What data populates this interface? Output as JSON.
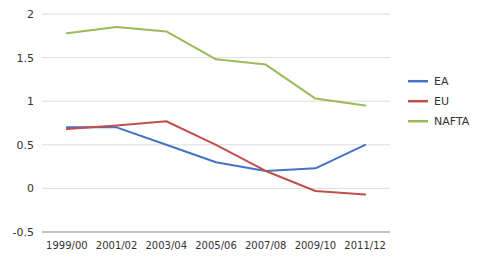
{
  "chart_data": {
    "type": "line",
    "categories": [
      "1999/00",
      "2001/02",
      "2003/04",
      "2005/06",
      "2007/08",
      "2009/10",
      "2011/12"
    ],
    "series": [
      {
        "name": "EA",
        "color": "#4472c4",
        "values": [
          0.7,
          0.7,
          0.5,
          0.3,
          0.2,
          0.23,
          0.5
        ]
      },
      {
        "name": "EU",
        "color": "#c0504d",
        "values": [
          0.68,
          0.72,
          0.77,
          0.5,
          0.2,
          -0.03,
          -0.07
        ]
      },
      {
        "name": "NAFTA",
        "color": "#9bbb59",
        "values": [
          1.78,
          1.85,
          1.8,
          1.48,
          1.42,
          1.03,
          0.95
        ]
      }
    ],
    "ylim": [
      -0.5,
      2.0
    ],
    "yticks": [
      -0.5,
      0,
      0.5,
      1,
      1.5,
      2
    ],
    "grid": true,
    "legend": "right"
  }
}
